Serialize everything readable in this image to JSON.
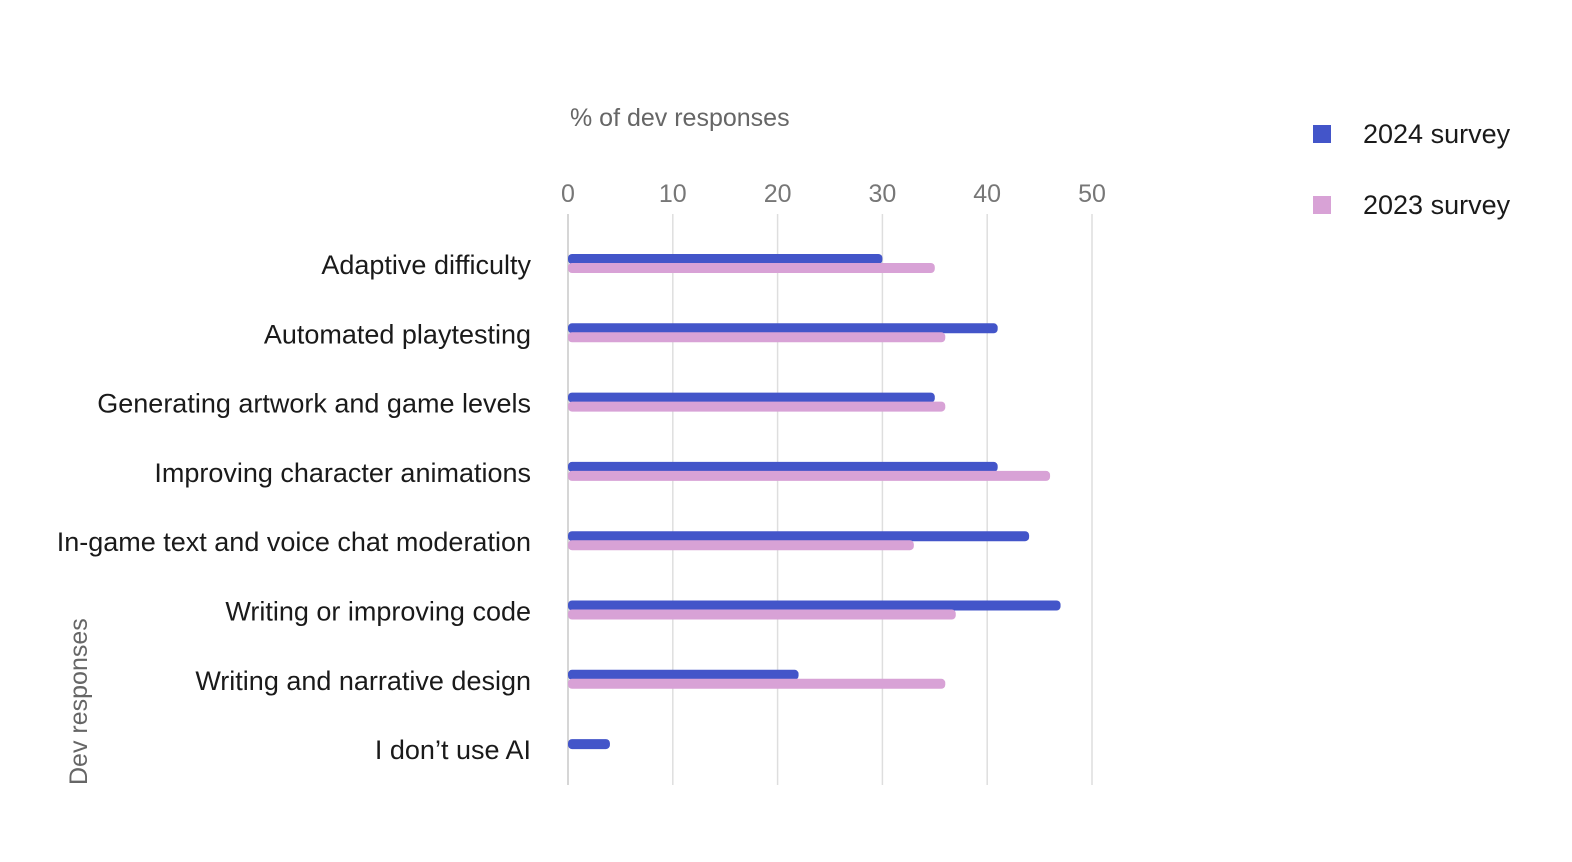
{
  "chart_data": {
    "type": "bar",
    "orientation": "horizontal",
    "xlabel": "% of dev responses",
    "ylabel": "Dev responses",
    "xlim": [
      0,
      50
    ],
    "xticks": [
      0,
      10,
      20,
      30,
      40,
      50
    ],
    "grid": true,
    "legend_position": "top-right",
    "categories": [
      "Adaptive difficulty",
      "Automated playtesting",
      "Generating artwork and game levels",
      "Improving character animations",
      "In-game text and voice chat moderation",
      "Writing or improving code",
      "Writing and narrative design",
      "I don’t use AI"
    ],
    "series": [
      {
        "name": "2024 survey",
        "color": "#4355c9",
        "values": [
          30,
          41,
          35,
          41,
          44,
          47,
          22,
          4
        ]
      },
      {
        "name": "2023 survey",
        "color": "#d8a2d6",
        "values": [
          35,
          36,
          36,
          46,
          33,
          37,
          36,
          null
        ]
      }
    ]
  }
}
